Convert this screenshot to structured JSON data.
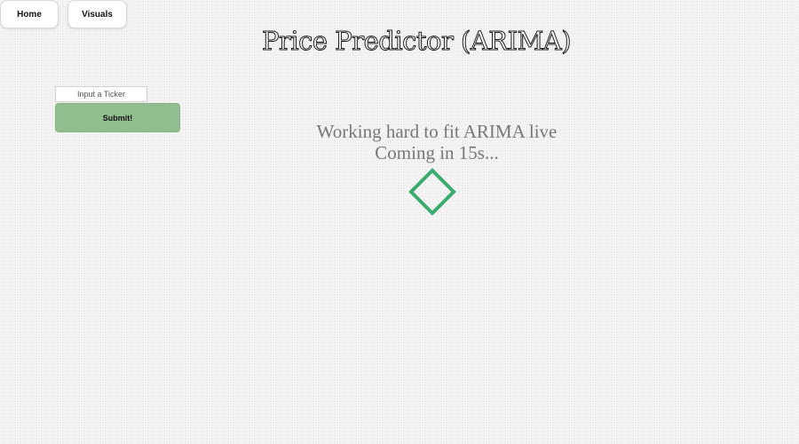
{
  "nav": {
    "home_label": "Home",
    "visuals_label": "Visuals"
  },
  "header": {
    "title": "Price Predictor (ARIMA)"
  },
  "form": {
    "ticker_placeholder": "Input a Ticker",
    "ticker_value": "",
    "submit_label": "Submit!"
  },
  "status": {
    "line1": "Working hard to fit ARIMA live",
    "line2": "Coming in 15s..."
  },
  "loader": {
    "icon": "diamond-spinner-icon",
    "color": "#3aad6e"
  },
  "colors": {
    "submit_bg": "#92bf8f",
    "status_text": "#777777"
  }
}
